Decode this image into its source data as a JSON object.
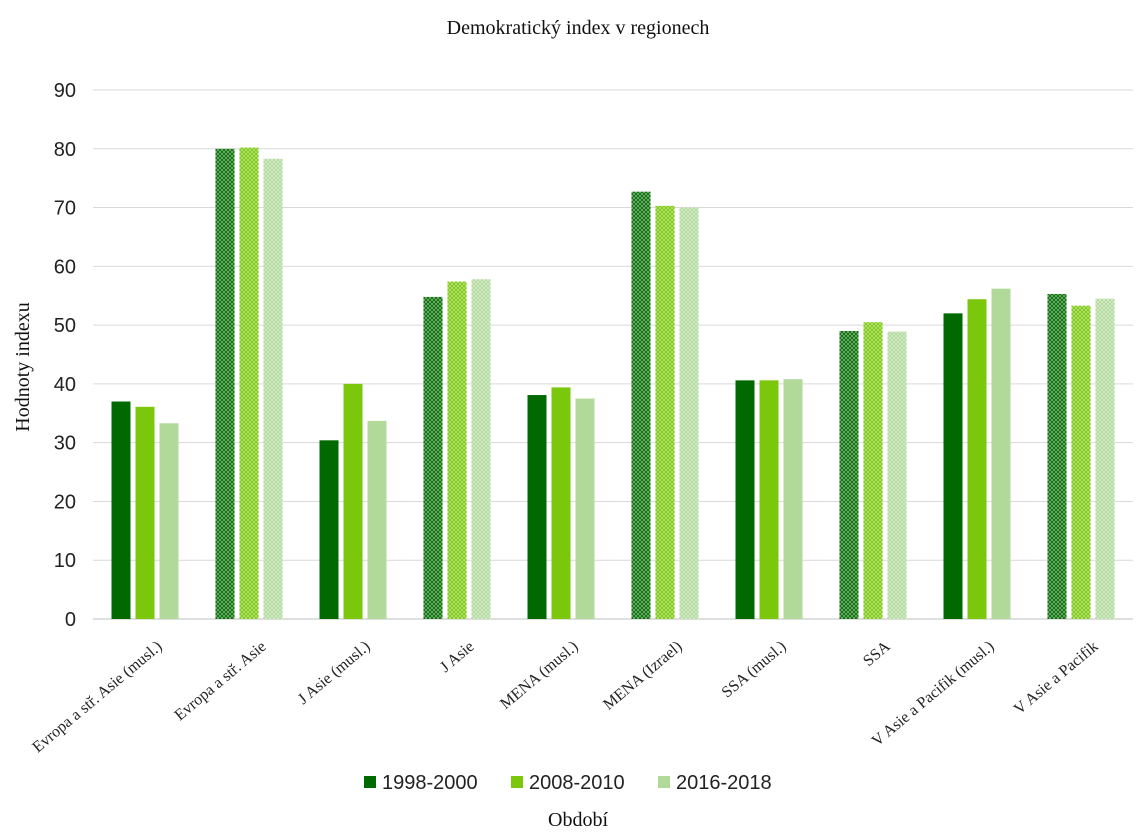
{
  "chart_data": {
    "type": "bar",
    "title": "Demokratický index v regionech",
    "xlabel": "Období",
    "ylabel": "Hodnoty indexu",
    "ylim": [
      0,
      90
    ],
    "yticks": [
      0,
      10,
      20,
      30,
      40,
      50,
      60,
      70,
      80,
      90
    ],
    "grid": true,
    "legend_position": "bottom",
    "categories": [
      "Evropa a stř. Asie (musl.)",
      "Evropa a stř. Asie",
      "J Asie (musl.)",
      "J Asie",
      "MENA (musl.)",
      "MENA (Izrael)",
      "SSA (musl.)",
      "SSA",
      "V Asie a Pacifik (musl.)",
      "V Asie a Pacifik"
    ],
    "hatched_categories": [
      false,
      true,
      false,
      true,
      false,
      true,
      false,
      true,
      false,
      true
    ],
    "series": [
      {
        "name": "1998-2000",
        "color": "#006a00",
        "values": [
          37.0,
          80.0,
          30.4,
          54.8,
          38.1,
          72.7,
          40.6,
          49.0,
          52.0,
          55.3
        ]
      },
      {
        "name": "2008-2010",
        "color": "#7ac70c",
        "values": [
          36.1,
          80.2,
          40.0,
          57.4,
          39.4,
          70.3,
          40.6,
          50.5,
          54.4,
          53.3
        ]
      },
      {
        "name": "2016-2018",
        "color": "#b0d99a",
        "values": [
          33.3,
          78.3,
          33.7,
          57.8,
          37.5,
          70.0,
          40.8,
          48.9,
          56.2,
          54.5
        ]
      }
    ]
  }
}
